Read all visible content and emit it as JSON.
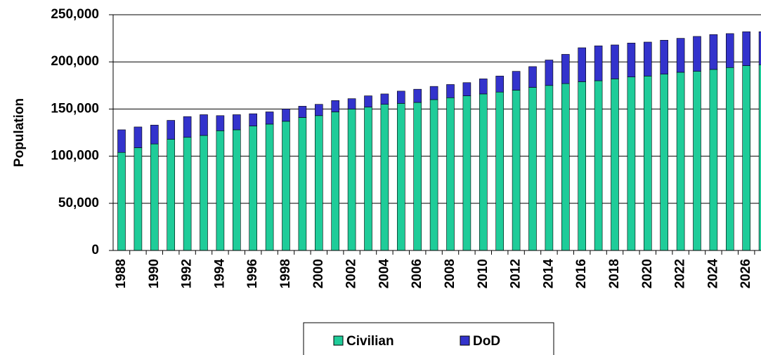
{
  "chart_data": {
    "type": "stacked_bar",
    "y_label": "Population",
    "categories": [
      "1988",
      null,
      "1990",
      null,
      "1992",
      null,
      "1994",
      null,
      "1996",
      null,
      "1998",
      null,
      "2000",
      null,
      "2002",
      null,
      "2004",
      null,
      "2006",
      null,
      "2008",
      null,
      "2010",
      null,
      "2012",
      null,
      "2014",
      null,
      "2016",
      null,
      "2018",
      null,
      "2020",
      null,
      "2022",
      null,
      "2024",
      null,
      "2026",
      null
    ],
    "series": [
      {
        "name": "Civilian",
        "color": "#1fcc99",
        "values": [
          104000,
          109000,
          113000,
          118000,
          120000,
          122000,
          127000,
          128000,
          132000,
          134000,
          137000,
          141000,
          143000,
          147000,
          150000,
          152000,
          155000,
          156000,
          157000,
          160000,
          162000,
          164000,
          166000,
          168000,
          170000,
          173000,
          175000,
          177000,
          179000,
          180000,
          182000,
          184000,
          185000,
          187000,
          189000,
          190000,
          192000,
          194000,
          196000,
          197000
        ]
      },
      {
        "name": "DoD",
        "color": "#3333cc",
        "values": [
          24000,
          22000,
          20000,
          20000,
          22000,
          22000,
          16000,
          16000,
          13000,
          13000,
          13000,
          12000,
          12000,
          12000,
          11000,
          12000,
          11000,
          13000,
          14000,
          14000,
          14000,
          14000,
          16000,
          17000,
          20000,
          22000,
          27000,
          31000,
          36000,
          37000,
          36000,
          36000,
          36000,
          36000,
          36000,
          37000,
          37000,
          36000,
          36000,
          35000
        ]
      }
    ],
    "ylim": [
      0,
      250000
    ],
    "yticks": [
      0,
      {
        "value": 50000,
        "label": "50,000"
      },
      {
        "value": 100000,
        "label": "100,000"
      },
      {
        "value": 150000,
        "label": "150,000"
      },
      {
        "value": 200000,
        "label": "200,000"
      },
      {
        "value": 250000,
        "label": "250,000"
      }
    ],
    "grid": true,
    "legend": "bottom"
  }
}
